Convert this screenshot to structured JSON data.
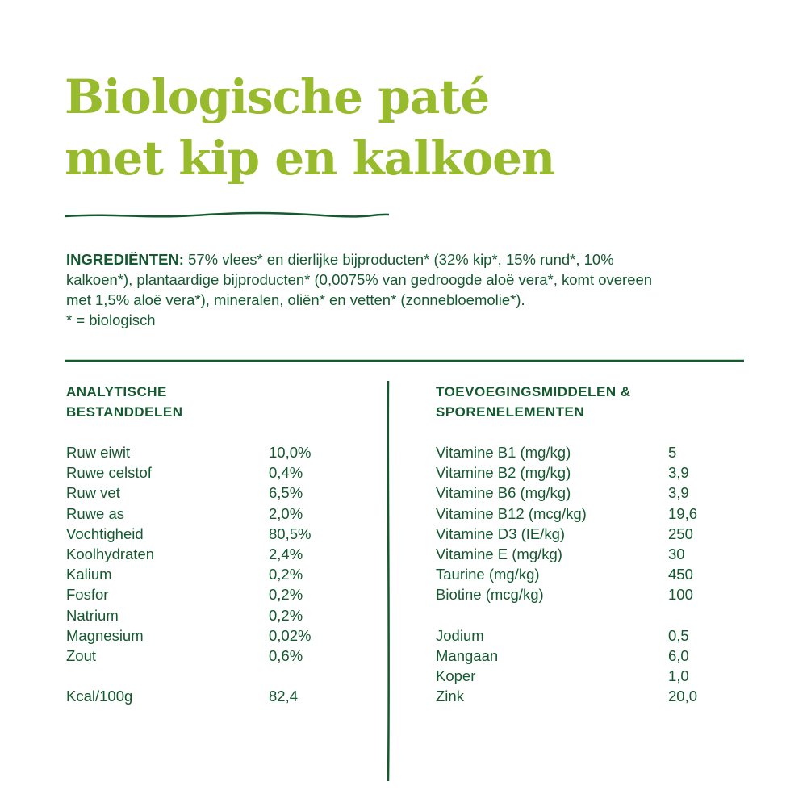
{
  "title": {
    "line1": "Biologische paté",
    "line2": "met kip en kalkoen"
  },
  "colors": {
    "title": "#97bb2c",
    "text": "#14592f"
  },
  "ingredients": {
    "label": "INGREDIËNTEN:",
    "line1": " 57% vlees* en dierlijke bijproducten* (32% kip*, 15% rund*, 10%",
    "line2": "kalkoen*), plantaardige bijproducten* (0,0075% van gedroogde aloë vera*, komt overeen",
    "line3": "met 1,5% aloë vera*), mineralen, oliën* en vetten* (zonnebloemolie*).",
    "note": "* = biologisch"
  },
  "analytical": {
    "heading1": "ANALYTISCHE",
    "heading2": "BESTANDDELEN",
    "rows": [
      {
        "label": "Ruw eiwit",
        "value": "10,0%"
      },
      {
        "label": "Ruwe celstof",
        "value": "0,4%"
      },
      {
        "label": "Ruw vet",
        "value": "6,5%"
      },
      {
        "label": "Ruwe as",
        "value": "2,0%"
      },
      {
        "label": "Vochtigheid",
        "value": "80,5%"
      },
      {
        "label": "Koolhydraten",
        "value": "2,4%"
      },
      {
        "label": "Kalium",
        "value": "0,2%"
      },
      {
        "label": "Fosfor",
        "value": "0,2%"
      },
      {
        "label": "Natrium",
        "value": "0,2%"
      },
      {
        "label": "Magnesium",
        "value": "0,02%"
      },
      {
        "label": "Zout",
        "value": "0,6%"
      }
    ],
    "kcal": {
      "label": "Kcal/100g",
      "value": "82,4"
    }
  },
  "additives": {
    "heading1": "TOEVOEGINGSMIDDELEN &",
    "heading2": "SPORENELEMENTEN",
    "vitamins": [
      {
        "label": "Vitamine B1 (mg/kg)",
        "value": "5"
      },
      {
        "label": "Vitamine B2 (mg/kg)",
        "value": "3,9"
      },
      {
        "label": "Vitamine B6 (mg/kg)",
        "value": "3,9"
      },
      {
        "label": "Vitamine B12 (mcg/kg)",
        "value": "19,6"
      },
      {
        "label": "Vitamine D3 (IE/kg)",
        "value": "250"
      },
      {
        "label": "Vitamine E (mg/kg)",
        "value": "30"
      },
      {
        "label": "Taurine (mg/kg)",
        "value": "450"
      },
      {
        "label": "Biotine (mcg/kg)",
        "value": "100"
      }
    ],
    "trace": [
      {
        "label": "Jodium",
        "value": "0,5"
      },
      {
        "label": "Mangaan",
        "value": "6,0"
      },
      {
        "label": "Koper",
        "value": "1,0"
      },
      {
        "label": "Zink",
        "value": "20,0"
      }
    ]
  }
}
